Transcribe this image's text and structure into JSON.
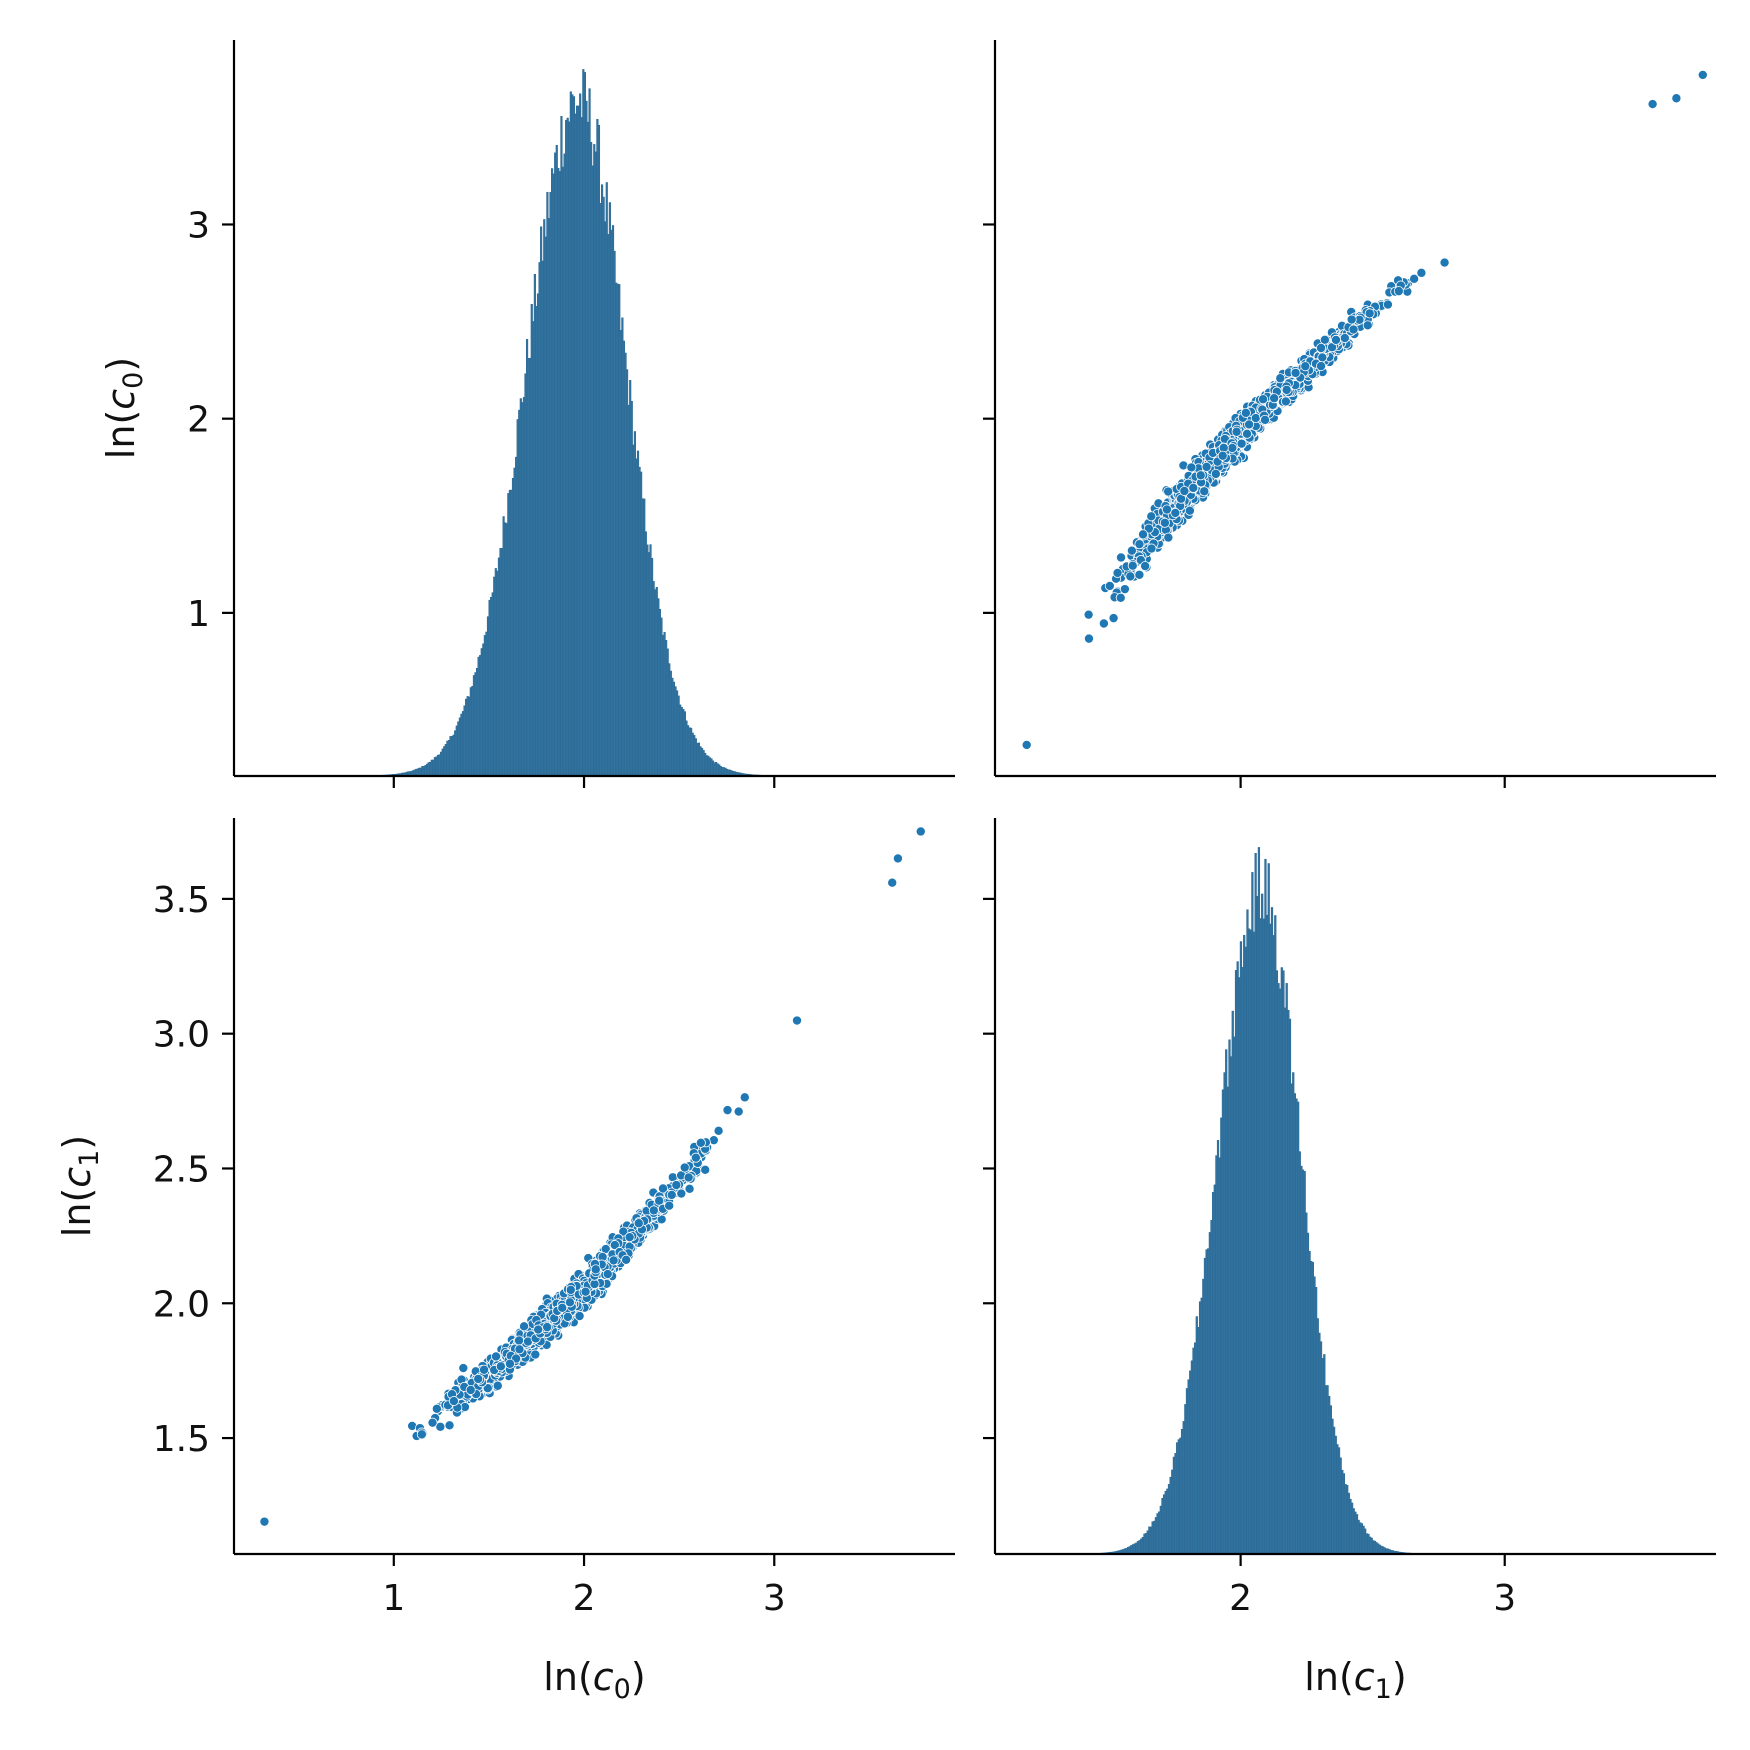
{
  "chart_data": {
    "type": "pairplot",
    "variables": [
      "ln(c0)",
      "ln(c1)"
    ],
    "color": "#1f77b4",
    "labels": {
      "c0": {
        "prefix": "ln(",
        "base": "c",
        "sub": "0",
        "suffix": ")"
      },
      "c1": {
        "prefix": "ln(",
        "base": "c",
        "sub": "1",
        "suffix": ")"
      }
    },
    "ticks": {
      "c0": {
        "values": [
          1,
          2,
          3
        ],
        "labels": [
          "1",
          "2",
          "3"
        ]
      },
      "c1": {
        "values": [
          1.5,
          2.0,
          2.5,
          3.0,
          3.5
        ],
        "labels": [
          "1.5",
          "2.0",
          "2.5",
          "3.0",
          "3.5"
        ]
      },
      "c1_bottom": {
        "values": [
          2,
          3
        ],
        "labels": [
          "2",
          "3"
        ]
      }
    },
    "ranges": {
      "c0": [
        0.16,
        3.95
      ],
      "c1": [
        1.07,
        3.8
      ]
    },
    "diagonal": [
      {
        "variable": "ln(c0)",
        "kind": "histogram",
        "mean": 1.92,
        "sd": 0.27,
        "skew": 0.55,
        "x_range": [
          0.3,
          3.75
        ],
        "peak_density": 1
      },
      {
        "variable": "ln(c1)",
        "kind": "histogram",
        "mean": 2.05,
        "sd": 0.16,
        "skew": 0.5,
        "x_range": [
          1.15,
          3.75
        ],
        "peak_density": 1
      }
    ],
    "scatter": {
      "x_variable": "ln(c0)",
      "y_variable": "ln(c1)",
      "trend_points": [
        [
          0.35,
          1.19
        ],
        [
          0.7,
          1.36
        ],
        [
          1.0,
          1.47
        ],
        [
          1.5,
          1.73
        ],
        [
          2.0,
          2.05
        ],
        [
          2.5,
          2.44
        ],
        [
          3.0,
          2.95
        ],
        [
          3.5,
          3.47
        ],
        [
          3.77,
          3.75
        ]
      ],
      "outliers": [
        [
          0.32,
          1.19
        ],
        [
          3.77,
          3.75
        ],
        [
          3.65,
          3.65
        ],
        [
          3.62,
          3.56
        ]
      ]
    }
  }
}
